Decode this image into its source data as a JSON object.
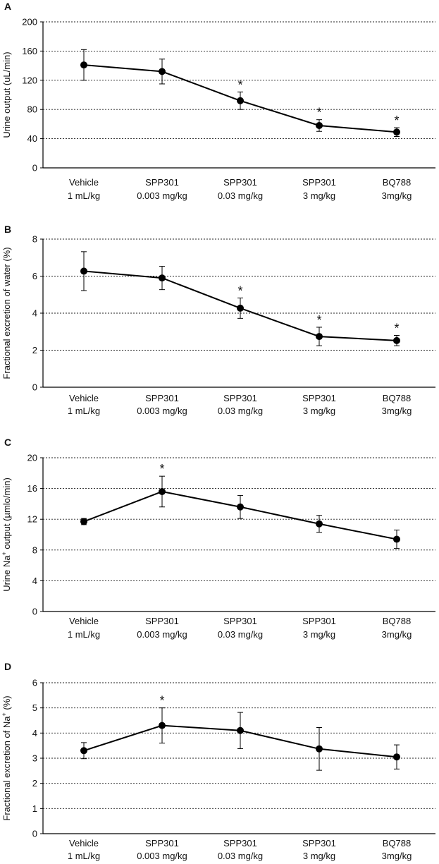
{
  "figure": {
    "categories": [
      {
        "line1": "Vehicle",
        "line2": "1 mL/kg"
      },
      {
        "line1": "SPP301",
        "line2": "0.003 mg/kg"
      },
      {
        "line1": "SPP301",
        "line2": "0.03 mg/kg"
      },
      {
        "line1": "SPP301",
        "line2": "3 mg/kg"
      },
      {
        "line1": "BQ788",
        "line2": "3mg/kg"
      }
    ],
    "significance_marker": "*",
    "colors": {
      "line": "#000000",
      "grid": "#222222",
      "background": "#ffffff"
    }
  },
  "chart_data": [
    {
      "type": "line",
      "panel": "A",
      "ylabel": "Urine output (uL/min)",
      "ylim": [
        0,
        200
      ],
      "yticks": [
        0,
        40,
        80,
        120,
        160,
        200
      ],
      "categories": [
        "Vehicle 1 mL/kg",
        "SPP301 0.003 mg/kg",
        "SPP301 0.03 mg/kg",
        "SPP301 3 mg/kg",
        "BQ788 3mg/kg"
      ],
      "values": [
        141,
        132,
        92,
        58,
        49
      ],
      "error": [
        21,
        17,
        12,
        8,
        6
      ],
      "significant": [
        false,
        false,
        true,
        true,
        true
      ]
    },
    {
      "type": "line",
      "panel": "B",
      "ylabel": "Fractional excretion of water (%)",
      "ylim": [
        0,
        8
      ],
      "yticks": [
        0,
        2,
        4,
        6,
        8
      ],
      "categories": [
        "Vehicle 1 mL/kg",
        "SPP301 0.003 mg/kg",
        "SPP301 0.03 mg/kg",
        "SPP301 3 mg/kg",
        "BQ788 3mg/kg"
      ],
      "values": [
        6.27,
        5.9,
        4.27,
        2.74,
        2.52
      ],
      "error": [
        1.05,
        0.63,
        0.55,
        0.5,
        0.28
      ],
      "significant": [
        false,
        false,
        true,
        true,
        true
      ]
    },
    {
      "type": "line",
      "panel": "C",
      "ylabel_main": "Urine Na",
      "ylabel_sup": "+",
      "ylabel_tail": " output (µmlo/min)",
      "ylim": [
        0,
        20
      ],
      "yticks": [
        0,
        4,
        8,
        12,
        16,
        20
      ],
      "categories": [
        "Vehicle 1 mL/kg",
        "SPP301 0.003 mg/kg",
        "SPP301 0.03 mg/kg",
        "SPP301 3 mg/kg",
        "BQ788 3mg/kg"
      ],
      "values": [
        11.7,
        15.6,
        13.6,
        11.4,
        9.4
      ],
      "error": [
        0.4,
        2.0,
        1.5,
        1.1,
        1.2
      ],
      "significant": [
        false,
        true,
        false,
        false,
        false
      ]
    },
    {
      "type": "line",
      "panel": "D",
      "ylabel_main": "Fractional excretion of Na",
      "ylabel_sup": "+",
      "ylabel_tail": " (%)",
      "ylim": [
        0,
        6
      ],
      "yticks": [
        0,
        1,
        2,
        3,
        4,
        5,
        6
      ],
      "categories": [
        "Vehicle 1 mL/kg",
        "SPP301 0.003 mg/kg",
        "SPP301 0.03 mg/kg",
        "SPP301 3 mg/kg",
        "BQ788 3mg/kg"
      ],
      "values": [
        3.3,
        4.3,
        4.1,
        3.37,
        3.05
      ],
      "error": [
        0.32,
        0.7,
        0.72,
        0.85,
        0.48
      ],
      "significant": [
        false,
        true,
        false,
        false,
        false
      ]
    }
  ]
}
